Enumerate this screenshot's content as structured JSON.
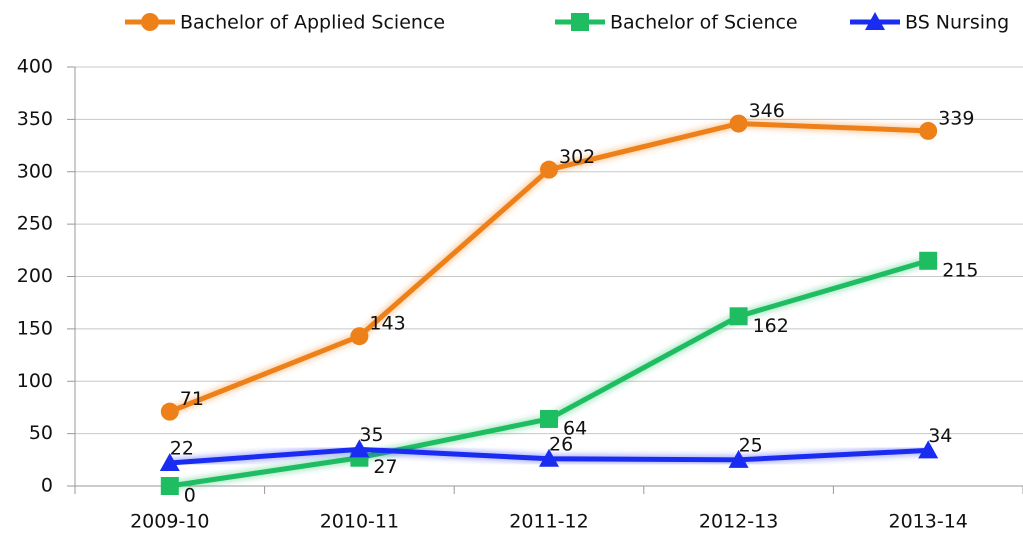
{
  "chart_data": {
    "type": "line",
    "categories": [
      "2009-10",
      "2010-11",
      "2011-12",
      "2012-13",
      "2013-14"
    ],
    "series": [
      {
        "name": "Bachelor of Applied Science",
        "color": "#ee8019",
        "marker": "circle",
        "values": [
          71,
          143,
          302,
          346,
          339
        ]
      },
      {
        "name": "Bachelor of Science",
        "color": "#1fbd62",
        "marker": "square",
        "values": [
          0,
          27,
          64,
          162,
          215
        ]
      },
      {
        "name": "BS Nursing",
        "color": "#1b2cf2",
        "marker": "triangle",
        "values": [
          22,
          35,
          26,
          25,
          34
        ]
      }
    ],
    "ylim": [
      0,
      400
    ],
    "yticks": [
      0,
      50,
      100,
      150,
      200,
      250,
      300,
      350,
      400
    ],
    "grid": true,
    "legend": "top"
  }
}
